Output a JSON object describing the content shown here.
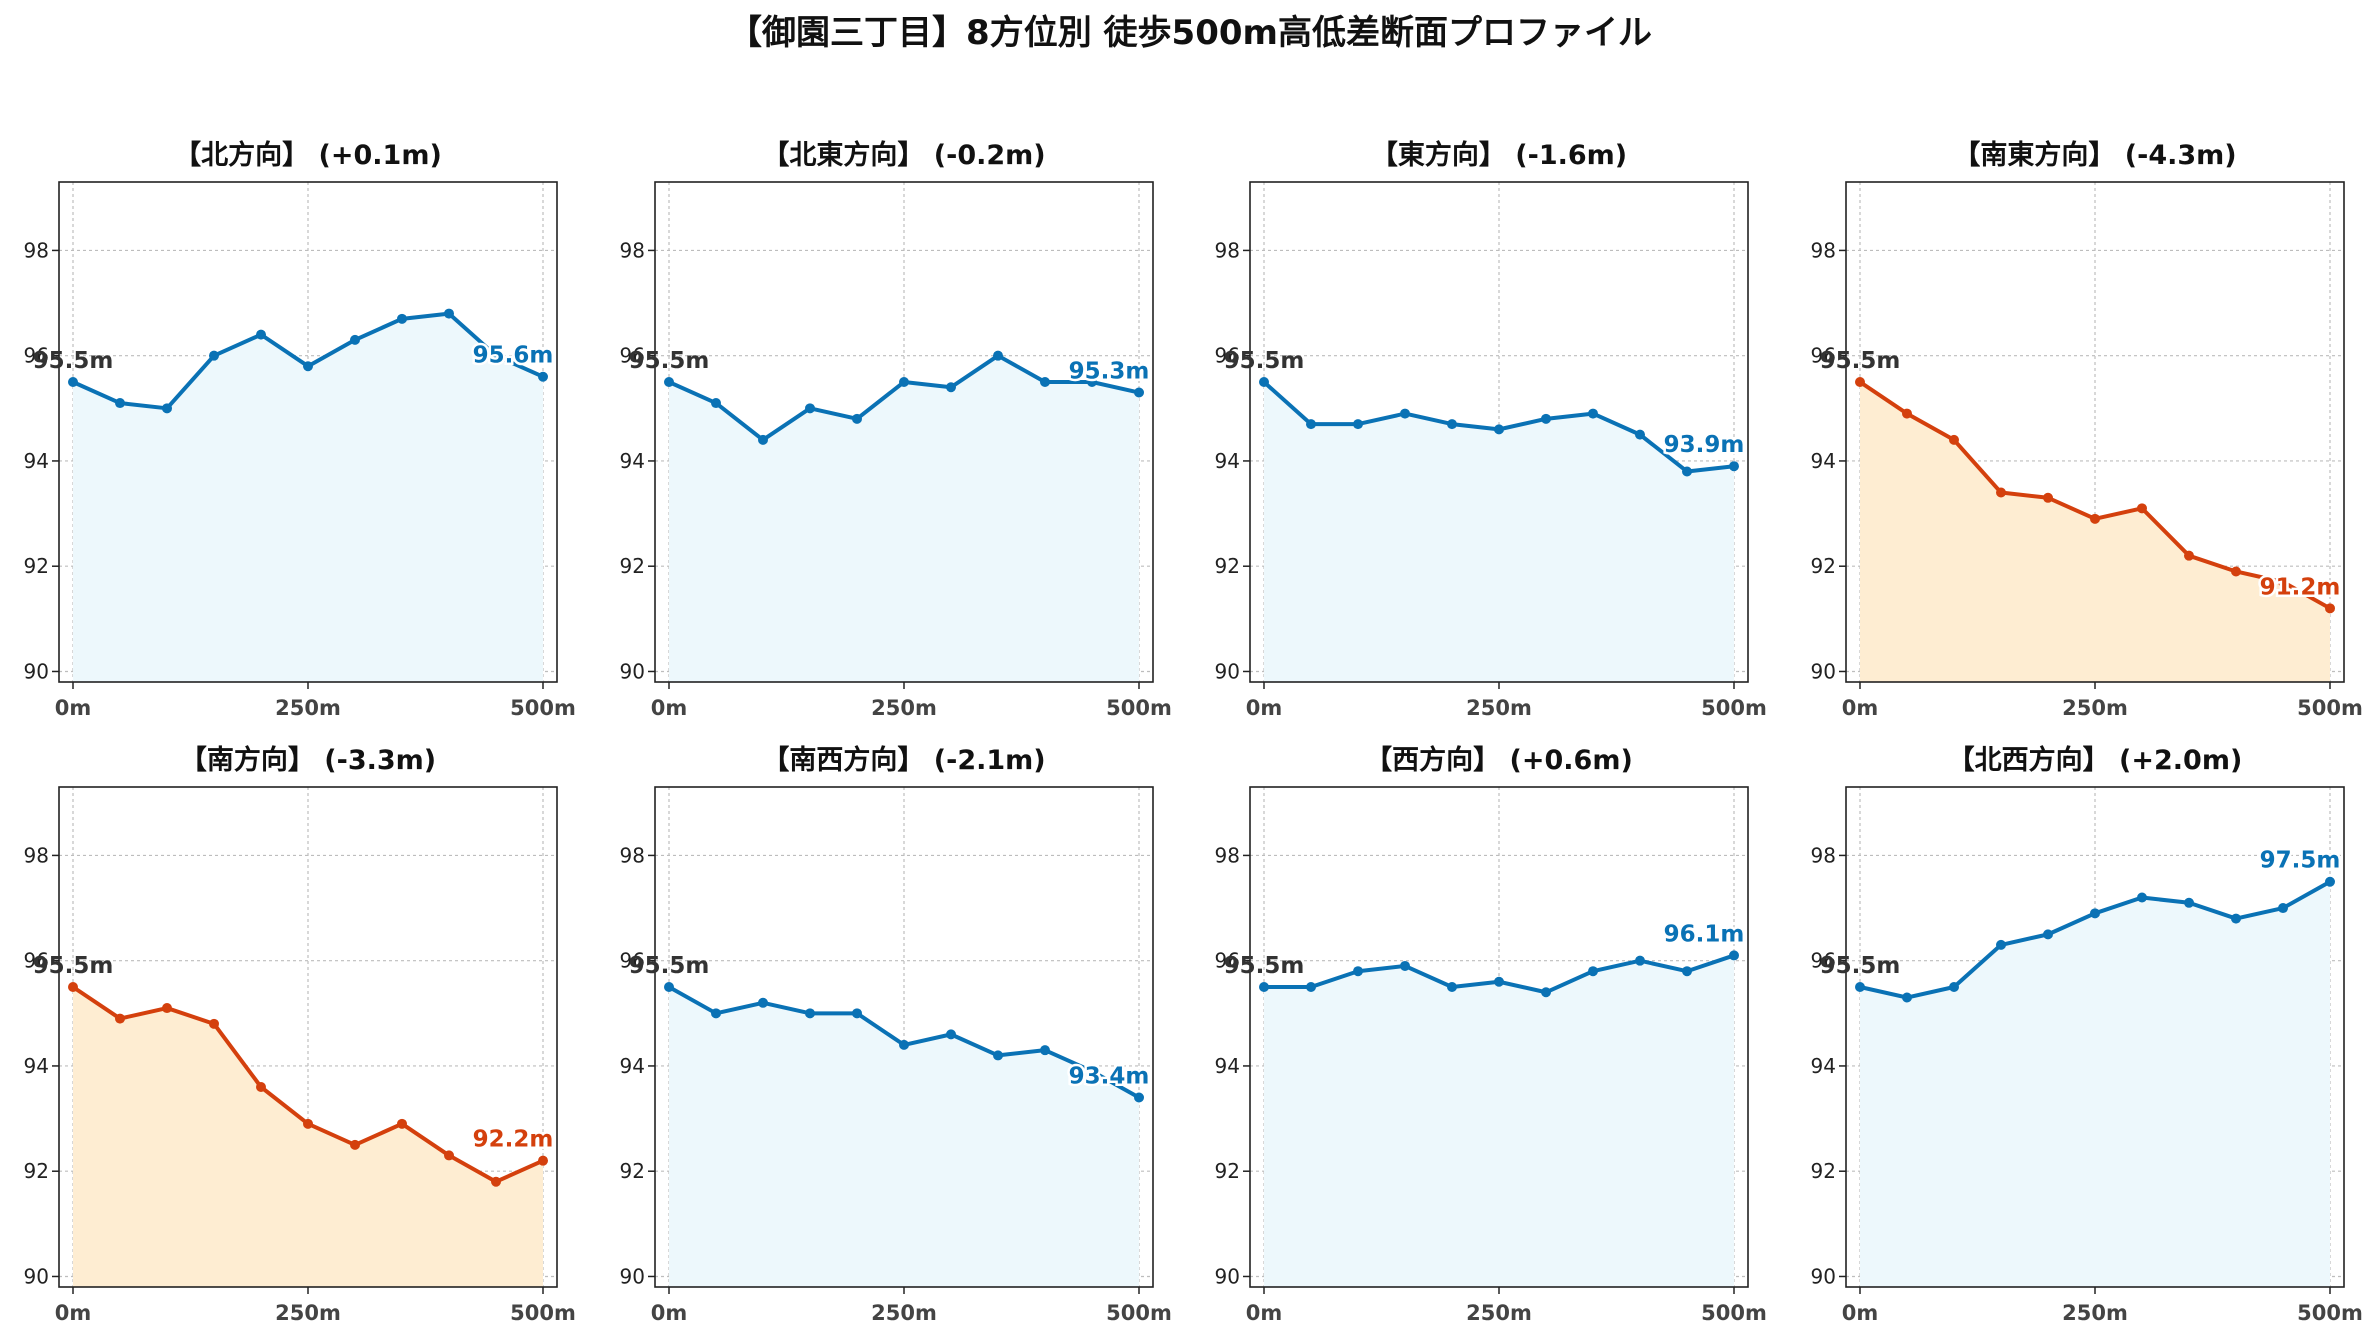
{
  "title": "【御園三丁目】8方位別 徒歩500m高低差断面プロファイル",
  "colors": {
    "up_line": "#0a72b5",
    "up_fill": "#edf8fc",
    "down_line": "#d4400d",
    "down_fill": "#feedd2",
    "start_label": "#333333",
    "grid": "#bdbdbd",
    "axis": "#222222"
  },
  "chart_data": [
    {
      "type": "area",
      "title": "【北方向】 (+0.1m)",
      "trend": "up",
      "x": [
        0,
        50,
        100,
        150,
        200,
        250,
        300,
        350,
        400,
        450,
        500
      ],
      "y": [
        95.5,
        95.1,
        95.0,
        96.0,
        96.4,
        95.8,
        96.3,
        96.7,
        96.8,
        96.0,
        95.6
      ],
      "xticks": [
        "0m",
        "250m",
        "500m"
      ],
      "yticks": [
        "90",
        "92",
        "94",
        "96",
        "98"
      ],
      "start_label": "95.5m",
      "end_label": "95.6m",
      "xlim": [
        0,
        500
      ],
      "ylim": [
        89.8,
        99.3
      ],
      "grid": true
    },
    {
      "type": "area",
      "title": "【北東方向】 (-0.2m)",
      "trend": "up",
      "x": [
        0,
        50,
        100,
        150,
        200,
        250,
        300,
        350,
        400,
        450,
        500
      ],
      "y": [
        95.5,
        95.1,
        94.4,
        95.0,
        94.8,
        95.5,
        95.4,
        96.0,
        95.5,
        95.5,
        95.3
      ],
      "xticks": [
        "0m",
        "250m",
        "500m"
      ],
      "yticks": [
        "90",
        "92",
        "94",
        "96",
        "98"
      ],
      "start_label": "95.5m",
      "end_label": "95.3m",
      "xlim": [
        0,
        500
      ],
      "ylim": [
        89.8,
        99.3
      ],
      "grid": true
    },
    {
      "type": "area",
      "title": "【東方向】 (-1.6m)",
      "trend": "up",
      "x": [
        0,
        50,
        100,
        150,
        200,
        250,
        300,
        350,
        400,
        450,
        500
      ],
      "y": [
        95.5,
        94.7,
        94.7,
        94.9,
        94.7,
        94.6,
        94.8,
        94.9,
        94.5,
        93.8,
        93.9
      ],
      "xticks": [
        "0m",
        "250m",
        "500m"
      ],
      "yticks": [
        "90",
        "92",
        "94",
        "96",
        "98"
      ],
      "start_label": "95.5m",
      "end_label": "93.9m",
      "xlim": [
        0,
        500
      ],
      "ylim": [
        89.8,
        99.3
      ],
      "grid": true
    },
    {
      "type": "area",
      "title": "【南東方向】 (-4.3m)",
      "trend": "down",
      "x": [
        0,
        50,
        100,
        150,
        200,
        250,
        300,
        350,
        400,
        450,
        500
      ],
      "y": [
        95.5,
        94.9,
        94.4,
        93.4,
        93.3,
        92.9,
        93.1,
        92.2,
        91.9,
        91.7,
        91.2
      ],
      "xticks": [
        "0m",
        "250m",
        "500m"
      ],
      "yticks": [
        "90",
        "92",
        "94",
        "96",
        "98"
      ],
      "start_label": "95.5m",
      "end_label": "91.2m",
      "xlim": [
        0,
        500
      ],
      "ylim": [
        89.8,
        99.3
      ],
      "grid": true
    },
    {
      "type": "area",
      "title": "【南方向】 (-3.3m)",
      "trend": "down",
      "x": [
        0,
        50,
        100,
        150,
        200,
        250,
        300,
        350,
        400,
        450,
        500
      ],
      "y": [
        95.5,
        94.9,
        95.1,
        94.8,
        93.6,
        92.9,
        92.5,
        92.9,
        92.3,
        91.8,
        92.2
      ],
      "xticks": [
        "0m",
        "250m",
        "500m"
      ],
      "yticks": [
        "90",
        "92",
        "94",
        "96",
        "98"
      ],
      "start_label": "95.5m",
      "end_label": "92.2m",
      "xlim": [
        0,
        500
      ],
      "ylim": [
        89.8,
        99.3
      ],
      "grid": true
    },
    {
      "type": "area",
      "title": "【南西方向】 (-2.1m)",
      "trend": "up",
      "x": [
        0,
        50,
        100,
        150,
        200,
        250,
        300,
        350,
        400,
        450,
        500
      ],
      "y": [
        95.5,
        95.0,
        95.2,
        95.0,
        95.0,
        94.4,
        94.6,
        94.2,
        94.3,
        93.9,
        93.4
      ],
      "xticks": [
        "0m",
        "250m",
        "500m"
      ],
      "yticks": [
        "90",
        "92",
        "94",
        "96",
        "98"
      ],
      "start_label": "95.5m",
      "end_label": "93.4m",
      "xlim": [
        0,
        500
      ],
      "ylim": [
        89.8,
        99.3
      ],
      "grid": true
    },
    {
      "type": "area",
      "title": "【西方向】 (+0.6m)",
      "trend": "up",
      "x": [
        0,
        50,
        100,
        150,
        200,
        250,
        300,
        350,
        400,
        450,
        500
      ],
      "y": [
        95.5,
        95.5,
        95.8,
        95.9,
        95.5,
        95.6,
        95.4,
        95.8,
        96.0,
        95.8,
        96.1
      ],
      "xticks": [
        "0m",
        "250m",
        "500m"
      ],
      "yticks": [
        "90",
        "92",
        "94",
        "96",
        "98"
      ],
      "start_label": "95.5m",
      "end_label": "96.1m",
      "xlim": [
        0,
        500
      ],
      "ylim": [
        89.8,
        99.3
      ],
      "grid": true
    },
    {
      "type": "area",
      "title": "【北西方向】 (+2.0m)",
      "trend": "up",
      "x": [
        0,
        50,
        100,
        150,
        200,
        250,
        300,
        350,
        400,
        450,
        500
      ],
      "y": [
        95.5,
        95.3,
        95.5,
        96.3,
        96.5,
        96.9,
        97.2,
        97.1,
        96.8,
        97.0,
        97.5
      ],
      "xticks": [
        "0m",
        "250m",
        "500m"
      ],
      "yticks": [
        "90",
        "92",
        "94",
        "96",
        "98"
      ],
      "start_label": "95.5m",
      "end_label": "97.5m",
      "xlim": [
        0,
        500
      ],
      "ylim": [
        89.8,
        99.3
      ],
      "grid": true
    }
  ]
}
